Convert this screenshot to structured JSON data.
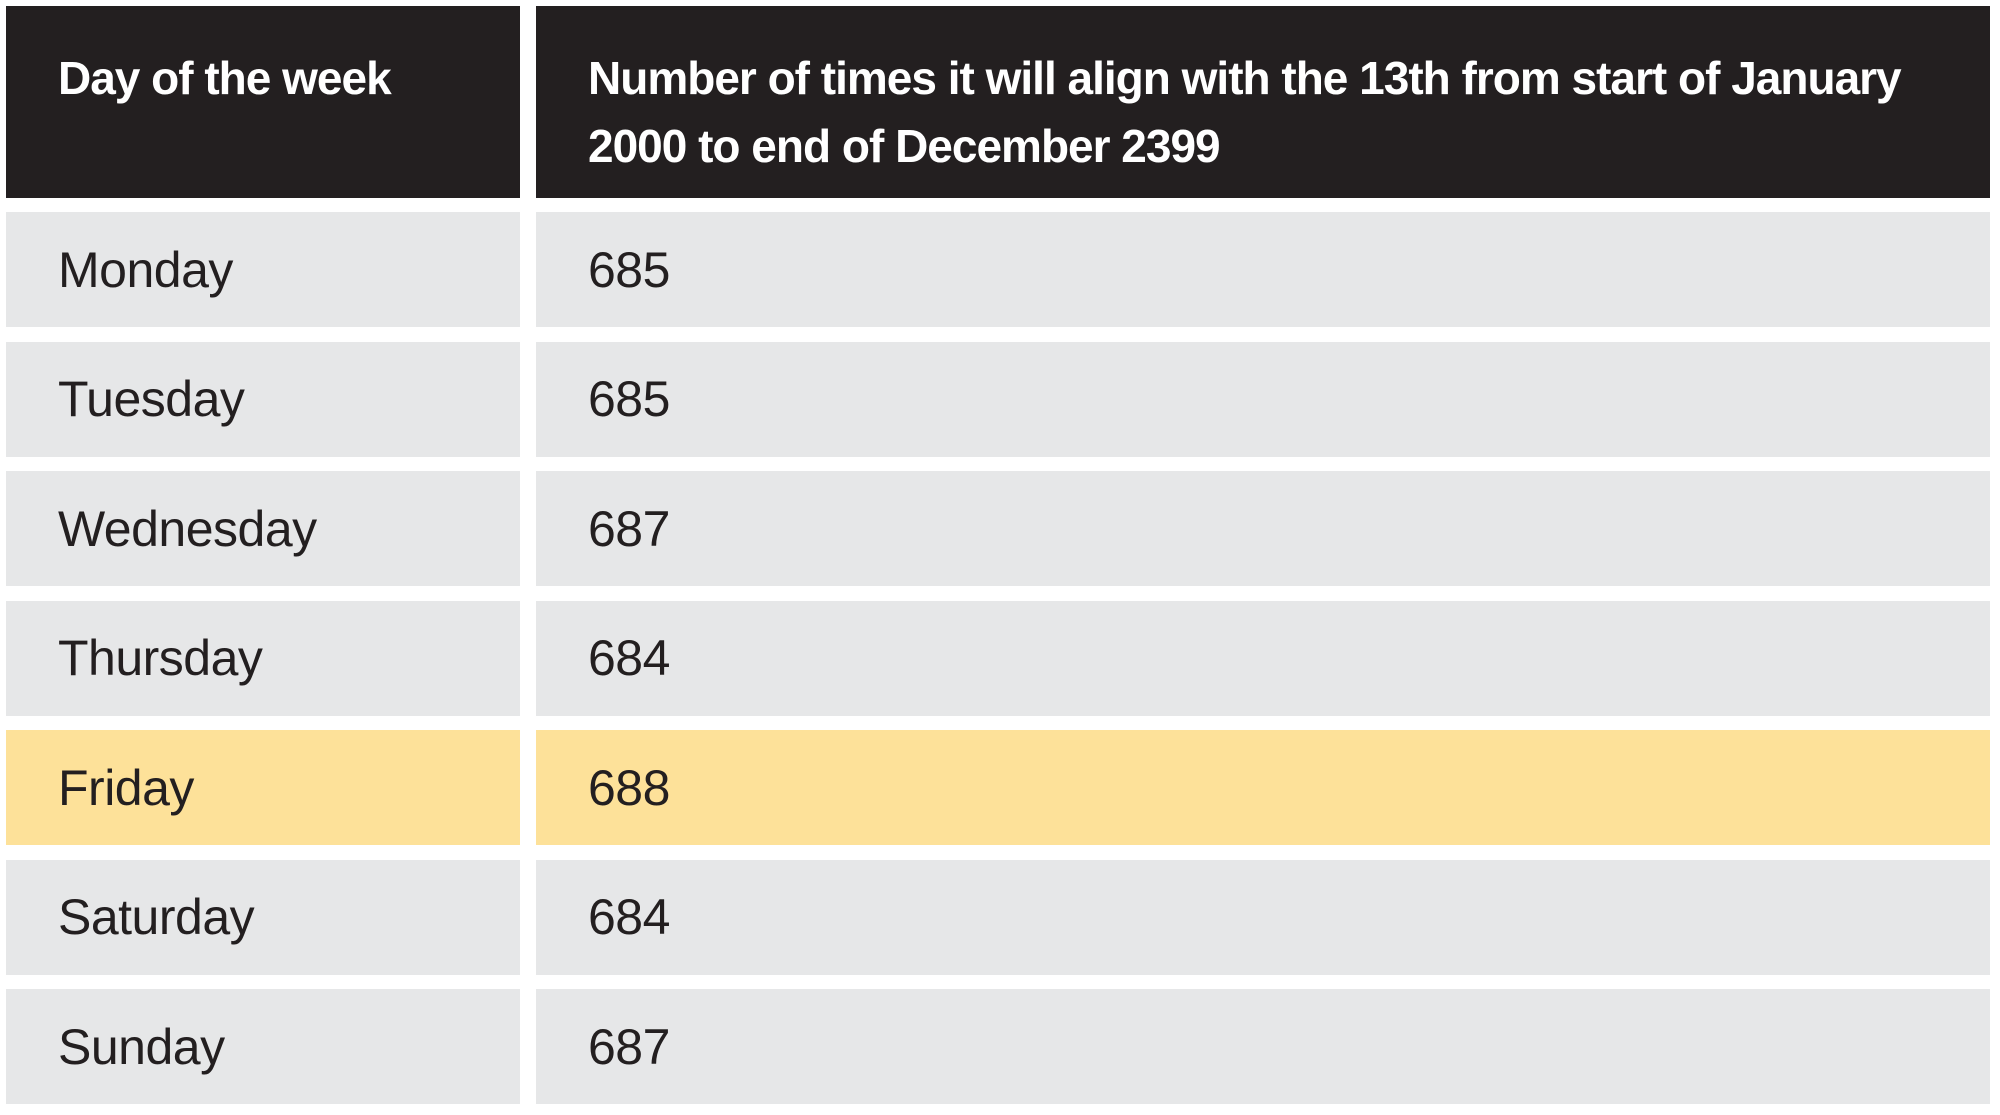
{
  "table": {
    "header": [
      "Day of the week",
      "Number of times it will align with the 13th from start of January 2000 to end of December 2399"
    ],
    "rows": [
      [
        "Monday",
        685
      ],
      [
        "Tuesday",
        685
      ],
      [
        "Wednesday",
        687
      ],
      [
        "Thursday",
        684
      ],
      [
        "Friday",
        688
      ],
      [
        "Saturday",
        684
      ],
      [
        "Sunday",
        687
      ]
    ],
    "highlight": {
      "row": 4,
      "color": "#fde199"
    }
  }
}
